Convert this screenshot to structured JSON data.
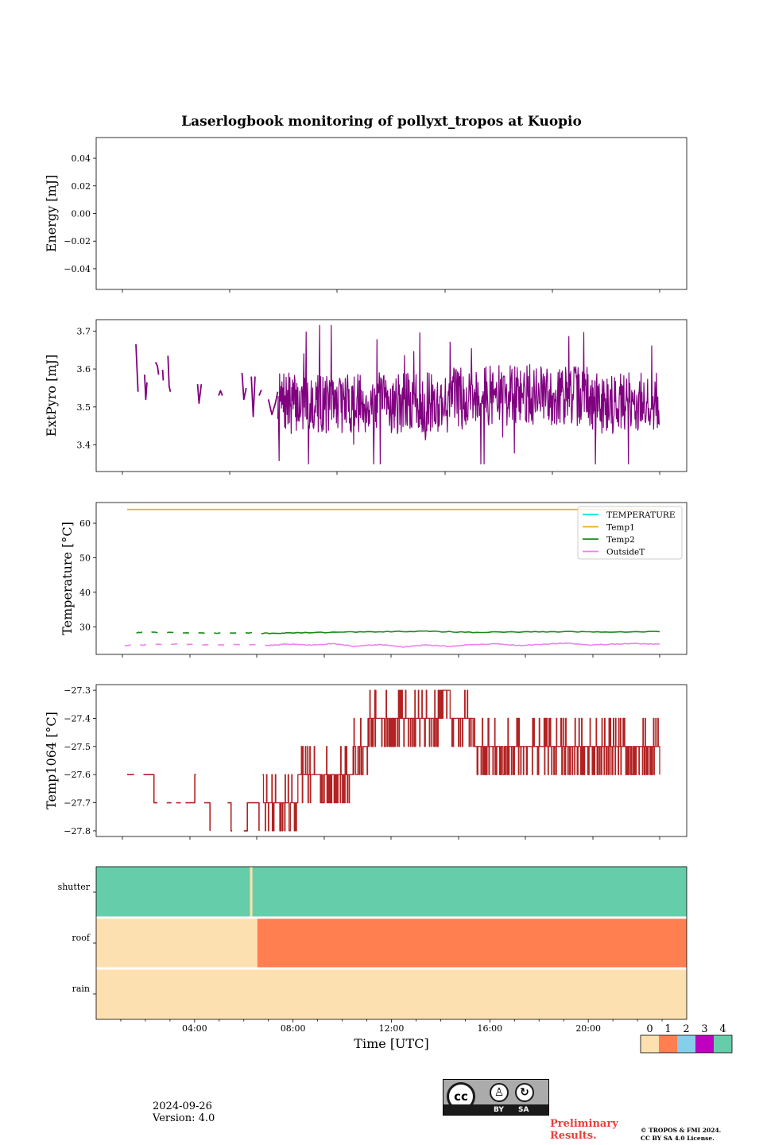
{
  "chart_data": [
    {
      "type": "line",
      "title": "Laserlogbook monitoring of pollyxt_tropos at Kuopio",
      "ylabel": "Energy [mJ]",
      "xlim": [
        0,
        24
      ],
      "ylim": [
        -0.055,
        0.055
      ],
      "yticks": [
        0.04,
        0.02,
        0.0,
        -0.02,
        -0.04
      ],
      "ytick_labels": [
        "0.04",
        "0.02",
        "0.00",
        "−0.02",
        "−0.04"
      ],
      "series": []
    },
    {
      "type": "line",
      "ylabel": "ExtPyro [mJ]",
      "xlim": [
        0,
        24
      ],
      "ylim": [
        3.33,
        3.73
      ],
      "yticks": [
        3.7,
        3.6,
        3.5,
        3.4
      ],
      "ytick_labels": [
        "3.7",
        "3.6",
        "3.5",
        "3.4"
      ],
      "series": [
        {
          "name": "ExtPyro",
          "color": "#800080",
          "segments": [
            {
              "x": [
                1.58,
                1.67
              ],
              "y": [
                3.665,
                3.54
              ]
            },
            {
              "x": [
                1.95,
                2.0,
                2.05
              ],
              "y": [
                3.585,
                3.52,
                3.565
              ]
            },
            {
              "x": [
                2.42,
                2.5,
                2.55
              ],
              "y": [
                3.618,
                3.608,
                3.585
              ]
            },
            {
              "x": [
                2.72,
                2.75
              ],
              "y": [
                3.598,
                3.57
              ]
            },
            {
              "x": [
                2.95,
                3.0,
                3.05
              ],
              "y": [
                3.635,
                3.555,
                3.54
              ]
            },
            {
              "x": [
                4.22,
                4.28,
                4.38
              ],
              "y": [
                3.56,
                3.51,
                3.56
              ]
            },
            {
              "x": [
                5.12,
                5.2,
                5.28
              ],
              "y": [
                3.53,
                3.543,
                3.53
              ]
            },
            {
              "x": [
                6.12,
                6.2,
                6.3
              ],
              "y": [
                3.59,
                3.52,
                3.55
              ]
            },
            {
              "x": [
                6.52,
                6.6,
                6.68
              ],
              "y": [
                3.58,
                3.475,
                3.58
              ]
            },
            {
              "x": [
                6.85,
                6.95
              ],
              "y": [
                3.53,
                3.545
              ]
            },
            {
              "x": [
                7.25,
                7.4,
                7.55,
                7.65
              ],
              "y": [
                3.52,
                3.48,
                3.51,
                3.54
              ]
            }
          ]
        }
      ],
      "noisy_trace": {
        "x_start": 7.65,
        "x_end": 24.0,
        "mean": 3.51,
        "min": 3.35,
        "max": 3.715
      }
    },
    {
      "type": "line",
      "ylabel": "Temperature [°C]",
      "xlim": [
        0,
        24
      ],
      "ylim": [
        22,
        66
      ],
      "yticks": [
        60,
        50,
        40,
        30
      ],
      "ytick_labels": [
        "60",
        "50",
        "40",
        "30"
      ],
      "legend": {
        "placement": "upper right",
        "entries": [
          "TEMPERATURE",
          "Temp1",
          "Temp2",
          "OutsideT"
        ]
      },
      "series": [
        {
          "name": "TEMPERATURE",
          "color": "#00e5ee",
          "segments": []
        },
        {
          "name": "Temp1",
          "color": "#f5a623",
          "segments": [
            {
              "x": [
                1.2,
                24.0
              ],
              "y": [
                64.0,
                64.0
              ]
            }
          ]
        },
        {
          "name": "Temp2",
          "color": "#1a8a1a",
          "dashed_until": 7.2,
          "segments": [
            {
              "x": [
                1.6,
                2.0,
                3.0,
                4.0,
                5.0,
                6.0,
                7.2,
                8.0,
                10.0,
                12.0,
                14.0,
                16.0,
                18.0,
                20.0,
                22.0,
                24.0
              ],
              "y": [
                28.3,
                28.4,
                28.3,
                28.3,
                28.2,
                28.3,
                28.1,
                28.2,
                28.4,
                28.6,
                28.7,
                28.4,
                28.5,
                28.6,
                28.5,
                28.6
              ]
            }
          ]
        },
        {
          "name": "OutsideT",
          "color": "#ee82ee",
          "dashed_until": 7.3,
          "segments": [
            {
              "x": [
                1.1,
                2.0,
                3.0,
                4.0,
                5.0,
                6.0,
                7.3,
                8.0,
                9.0,
                10.0,
                11.0,
                12.0,
                13.0,
                14.0,
                15.0,
                16.0,
                17.0,
                18.0,
                19.0,
                20.0,
                21.0,
                22.0,
                23.0,
                24.0
              ],
              "y": [
                24.6,
                24.8,
                25.0,
                24.8,
                24.7,
                24.9,
                24.6,
                25.0,
                24.7,
                25.1,
                24.3,
                24.9,
                24.1,
                24.8,
                24.3,
                24.9,
                25.0,
                24.6,
                24.9,
                25.3,
                24.7,
                25.0,
                25.1,
                25.0
              ]
            }
          ]
        }
      ]
    },
    {
      "type": "line",
      "ylabel": "Temp1064 [°C]",
      "xlim": [
        0,
        24
      ],
      "ylim": [
        -27.82,
        -27.28
      ],
      "yticks": [
        -27.3,
        -27.4,
        -27.5,
        -27.6,
        -27.7,
        -27.8
      ],
      "ytick_labels": [
        "−27.3",
        "−27.4",
        "−27.5",
        "−27.6",
        "−27.7",
        "−27.8"
      ],
      "series": [
        {
          "name": "Temp1064",
          "color": "#b22222",
          "step": true,
          "segments": [
            {
              "x": [
                1.2,
                1.5
              ],
              "y": [
                -27.6,
                -27.6
              ]
            },
            {
              "x": [
                1.9,
                2.3,
                2.35,
                2.5
              ],
              "y": [
                -27.6,
                -27.6,
                -27.7,
                -27.7
              ]
            },
            {
              "x": [
                2.9,
                3.1
              ],
              "y": [
                -27.7,
                -27.7
              ]
            },
            {
              "x": [
                3.3,
                3.5
              ],
              "y": [
                -27.7,
                -27.7
              ]
            },
            {
              "x": [
                3.7,
                4.05,
                4.1,
                4.15
              ],
              "y": [
                -27.7,
                -27.7,
                -27.6,
                -27.6
              ]
            },
            {
              "x": [
                4.5,
                4.7,
                4.75
              ],
              "y": [
                -27.7,
                -27.7,
                -27.8
              ]
            },
            {
              "x": [
                5.5,
                5.6,
                5.65,
                5.7
              ],
              "y": [
                -27.7,
                -27.7,
                -27.8,
                -27.8
              ]
            },
            {
              "x": [
                6.2,
                6.3,
                6.35,
                6.8,
                6.85
              ],
              "y": [
                -27.8,
                -27.8,
                -27.7,
                -27.7,
                -27.8
              ]
            },
            {
              "x": [
                7.0,
                7.4,
                7.45,
                8.0,
                8.5,
                9.0,
                9.5,
                9.6,
                10.3,
                10.9,
                11.0,
                11.5,
                12.0,
                12.5,
                13.0,
                13.5,
                14.0,
                14.5,
                15.0,
                15.5,
                16.0,
                16.5,
                17.0,
                17.5,
                18.0,
                18.5,
                19.0,
                19.5,
                20.0,
                20.5,
                21.0,
                21.5,
                22.0,
                22.5,
                23.0,
                23.5,
                24.0
              ],
              "y": [
                -27.7,
                -27.8,
                -27.7,
                -27.7,
                -27.6,
                -27.6,
                -27.6,
                -27.6,
                -27.6,
                -27.5,
                -27.5,
                -27.4,
                -27.4,
                -27.4,
                -27.4,
                -27.4,
                -27.4,
                -27.3,
                -27.4,
                -27.4,
                -27.5,
                -27.5,
                -27.5,
                -27.5,
                -27.5,
                -27.5,
                -27.5,
                -27.5,
                -27.5,
                -27.5,
                -27.5,
                -27.5,
                -27.5,
                -27.5,
                -27.5,
                -27.5,
                -27.5
              ]
            }
          ]
        }
      ],
      "noisy_trace": {
        "x_start": 7.5,
        "x_end": 24.0,
        "step": 0.1
      }
    },
    {
      "type": "heatmap",
      "rows": [
        "shutter",
        "roof",
        "rain"
      ],
      "xlabel": "Time [UTC]",
      "xlim": [
        0,
        24
      ],
      "xticks": [
        4,
        8,
        12,
        16,
        20
      ],
      "xtick_labels": [
        "04:00",
        "08:00",
        "12:00",
        "16:00",
        "20:00"
      ],
      "spans": {
        "shutter": [
          {
            "from": 0,
            "to": 24,
            "value": 4
          },
          {
            "from": 6.25,
            "to": 6.35,
            "value": 0
          }
        ],
        "roof": [
          {
            "from": 0,
            "to": 6.55,
            "value": 0
          },
          {
            "from": 6.55,
            "to": 24,
            "value": 1
          }
        ],
        "rain": [
          {
            "from": 0,
            "to": 24,
            "value": 0
          }
        ]
      },
      "colorbar": {
        "labels": [
          "0",
          "1",
          "2",
          "3",
          "4"
        ],
        "colors": [
          "#fde0af",
          "#ff7f50",
          "#87ceeb",
          "#c000c0",
          "#66cdaa"
        ]
      }
    }
  ],
  "footer": {
    "date": "2024-09-26",
    "version": "Version: 4.0",
    "preliminary_line1": "Preliminary",
    "preliminary_line2": "Results.",
    "copyright_line1": "© TROPOS & FMI 2024.",
    "copyright_line2": "CC BY SA 4.0 License.",
    "license_logo_text": "cc",
    "license_by": "BY",
    "license_sa": "SA"
  }
}
